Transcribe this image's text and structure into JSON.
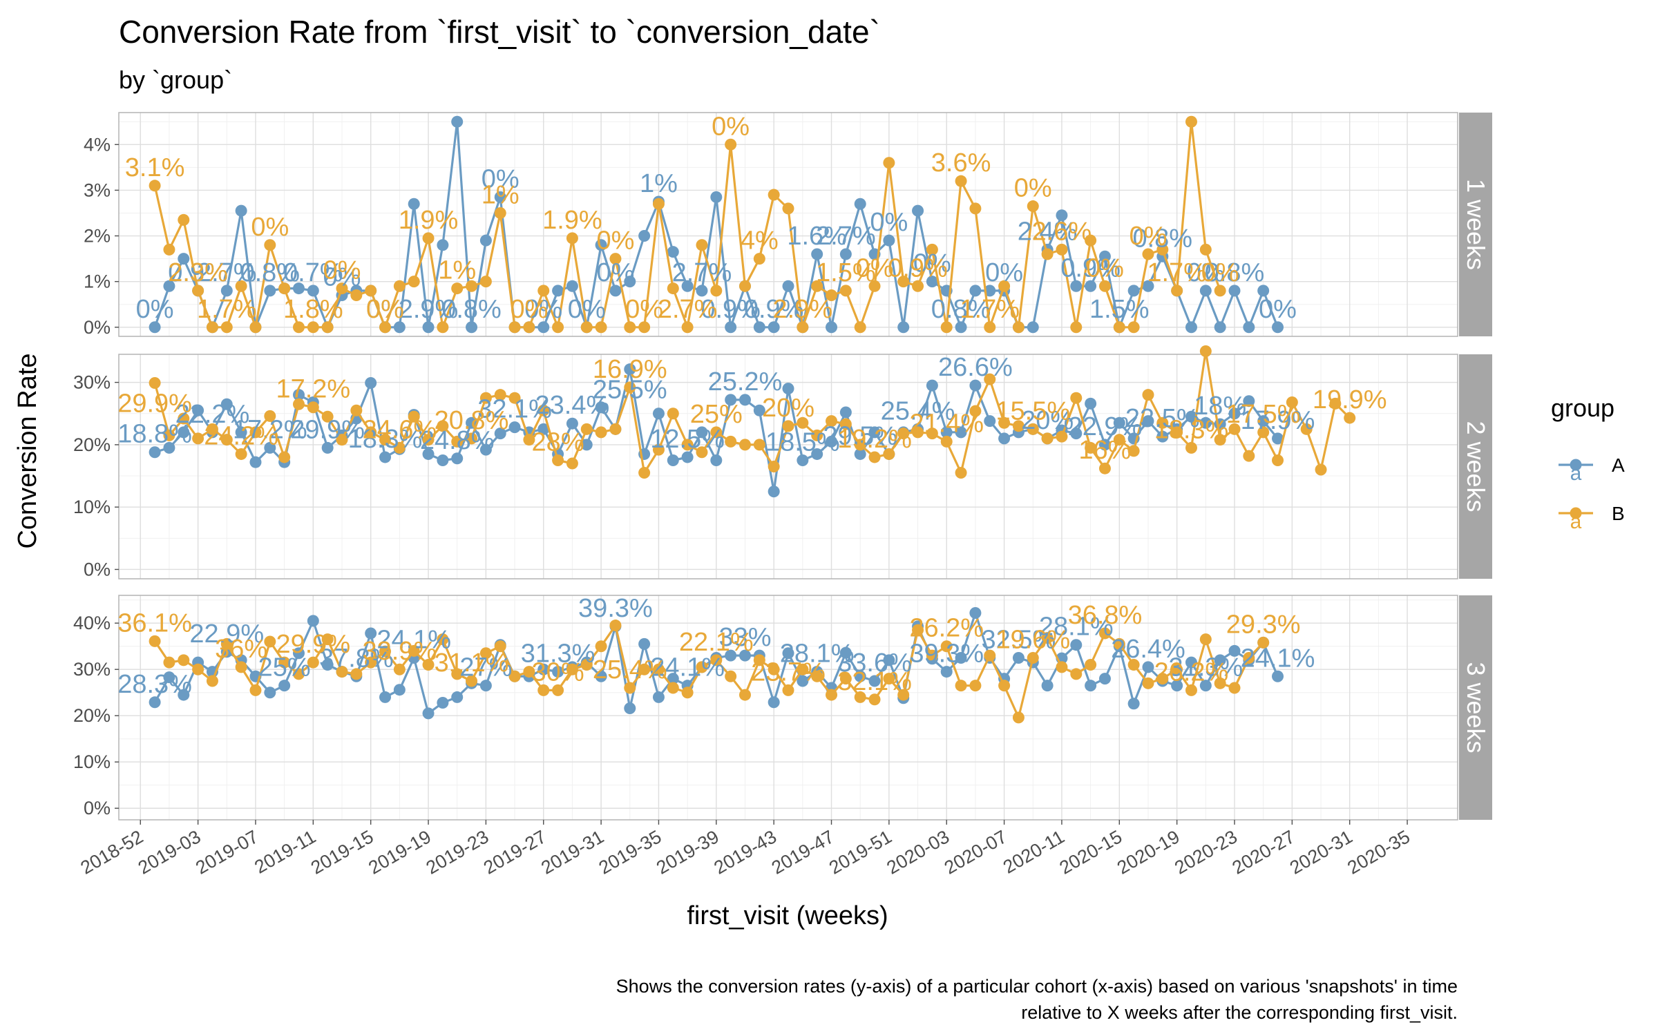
{
  "chart_data": {
    "type": "line",
    "title": "Conversion Rate from `first_visit` to `conversion_date`",
    "subtitle": "by `group`",
    "xlabel": "first_visit (weeks)",
    "ylabel": "Conversion Rate",
    "caption_lines": [
      "Shows the conversion rates (y-axis) of a particular cohort (x-axis) based on various 'snapshots' in time",
      "relative to X weeks after the corresponding first_visit."
    ],
    "legend": {
      "title": "group",
      "placement": "right",
      "entries": [
        {
          "name": "A",
          "color": "#6a9bc3"
        },
        {
          "name": "B",
          "color": "#e8a838"
        }
      ],
      "key_glyph": "a"
    },
    "x_axis": {
      "tick_labels": [
        "2018-52",
        "2019-03",
        "2019-07",
        "2019-11",
        "2019-15",
        "2019-19",
        "2019-23",
        "2019-27",
        "2019-31",
        "2019-35",
        "2019-39",
        "2019-43",
        "2019-47",
        "2019-51",
        "2020-03",
        "2020-07",
        "2020-11",
        "2020-15",
        "2020-19",
        "2020-23",
        "2020-27",
        "2020-31",
        "2020-35"
      ],
      "tick_step_weeks": 4,
      "range_weeks": [
        -1.5,
        91.5
      ]
    },
    "grid": true,
    "facets": [
      {
        "label": "1 weeks",
        "yticks": [
          0,
          1,
          2,
          3,
          4
        ],
        "ytick_labels": [
          "0%",
          "1%",
          "2%",
          "3%",
          "4%"
        ],
        "ylim": [
          -0.2,
          4.7
        ],
        "series": [
          {
            "name": "A",
            "start_week": 1,
            "values": [
              0,
              0.9,
              1.5,
              0.8,
              0,
              0.8,
              2.55,
              0,
              0.8,
              0.85,
              0.85,
              0.8,
              0,
              0.7,
              0.8,
              0.8,
              0,
              0,
              2.7,
              0,
              1.8,
              4.5,
              0,
              1.9,
              2.85,
              0,
              0,
              0,
              0.8,
              0.9,
              0,
              1.8,
              0.8,
              1.0,
              2.0,
              2.75,
              1.65,
              0.9,
              0.8,
              2.85,
              0,
              0.9,
              0,
              0,
              0.9,
              0,
              1.6,
              0,
              1.6,
              2.7,
              1.6,
              1.9,
              0,
              2.55,
              1.0,
              0.8,
              0,
              0.8,
              0.8,
              0.8,
              0,
              0,
              1.7,
              2.45,
              0.9,
              0.9,
              1.55,
              0,
              0.8,
              0.9,
              1.55,
              0.8,
              0,
              0.8,
              0,
              0.8,
              0,
              0.8,
              0,
              null
            ]
          },
          {
            "name": "B",
            "start_week": 1,
            "values": [
              3.1,
              1.7,
              2.35,
              0.8,
              0,
              0,
              0.9,
              0,
              1.8,
              0.85,
              0,
              0,
              0,
              0.85,
              0.7,
              0.8,
              0,
              0.9,
              1.0,
              1.95,
              0,
              0.85,
              0.9,
              1.0,
              2.5,
              0,
              0,
              0.8,
              0,
              1.95,
              0,
              0,
              1.5,
              0,
              0,
              2.7,
              0.85,
              0,
              1.8,
              0.8,
              4.0,
              0.9,
              1.5,
              2.9,
              2.6,
              0,
              0.9,
              0.7,
              0.8,
              0,
              0.9,
              3.6,
              1.0,
              0.9,
              1.7,
              0,
              3.2,
              2.6,
              0,
              0.9,
              0,
              2.65,
              1.6,
              1.7,
              0,
              1.9,
              0.9,
              0,
              0,
              1.6,
              1.7,
              0.8,
              4.5,
              1.7,
              0.8,
              null,
              null,
              null,
              null,
              null
            ]
          }
        ],
        "data_labels": {
          "A": [
            "0%",
            "0.9%",
            "2.7%",
            "0.8%",
            "0.7%",
            "0%",
            "0%",
            "2.9%",
            "0.8%",
            "0%",
            "0%",
            "0%",
            "0%",
            "1%",
            "2.7%",
            "0.9%",
            "0.9%",
            "1.6%",
            "2.7%",
            "0%",
            "0%",
            "0.8%",
            "0%",
            "2.4%",
            "0.9%",
            "1.5%",
            "0.8%",
            "0%",
            "0.8%",
            "0%"
          ],
          "B": [
            "3.1%",
            "2.3%",
            "1.7%",
            "0%",
            "1.8%",
            "0%",
            "0%",
            "1.9%",
            "1%",
            "1%",
            "0%",
            "1.9%",
            "0%",
            "0%",
            "2.7%",
            "0%",
            "4%",
            "2.9%",
            "1.5%",
            "0%",
            "0.9%",
            "3.6%",
            "1.7%",
            "0%",
            "2.6%",
            "0%",
            "0%",
            "1.7%",
            "0%"
          ]
        }
      },
      {
        "label": "2 weeks",
        "yticks": [
          0,
          10,
          20,
          30
        ],
        "ytick_labels": [
          "0%",
          "10%",
          "20%",
          "30%"
        ],
        "ylim": [
          -1.5,
          34.5
        ],
        "series": [
          {
            "name": "A",
            "start_week": 1,
            "values": [
              18.8,
              19.5,
              22,
              25.5,
              22,
              26.5,
              22,
              17.2,
              19.5,
              17.2,
              28,
              26.8,
              19.5,
              21.5,
              24.2,
              29.9,
              18,
              19.3,
              24.8,
              18.5,
              17.5,
              17.8,
              23.5,
              19.2,
              21.8,
              22.8,
              22,
              22.5,
              18.5,
              23.4,
              20,
              26,
              22.5,
              32.1,
              18.5,
              25,
              17.5,
              18,
              22,
              17.5,
              27.2,
              27.2,
              25.5,
              12.5,
              29,
              17.5,
              18.5,
              20.5,
              25.2,
              18.5,
              22,
              18.5,
              22,
              22.5,
              29.5,
              22,
              22,
              29.5,
              23.8,
              21,
              22,
              22.5,
              21,
              22.3,
              21.8,
              26.6,
              20,
              23.5,
              21,
              23.8,
              21.3,
              22.5,
              24.5,
              23.5,
              23.3,
              25,
              27,
              23.8,
              21,
              null
            ]
          },
          {
            "name": "B",
            "start_week": 1,
            "values": [
              29.9,
              21.5,
              24.2,
              21,
              22.5,
              20.8,
              18.5,
              22,
              24.6,
              18,
              26.5,
              26,
              24.5,
              20.8,
              25.5,
              22,
              20.8,
              19.5,
              24.5,
              20.8,
              23,
              20.5,
              21,
              27.5,
              28,
              27.5,
              20.8,
              25.5,
              17.5,
              17,
              22.5,
              22,
              22.5,
              29.2,
              15.5,
              19.2,
              25,
              20,
              18.8,
              22,
              20.5,
              20,
              20,
              16.5,
              23,
              23.5,
              21.5,
              23.8,
              23.3,
              20,
              18,
              18.5,
              21.8,
              22,
              21.8,
              20.5,
              15.5,
              25.4,
              30.5,
              23.5,
              23,
              22.5,
              21,
              21.3,
              27.5,
              19.5,
              16.2,
              20.8,
              19,
              28,
              23.5,
              22,
              19.5,
              35,
              20.8,
              22.5,
              18.2,
              22,
              17.5,
              26.8,
              22.5,
              16,
              26.6,
              24.3,
              null
            ]
          }
        ],
        "data_labels": {
          "A": [
            "18.8%",
            "22.2%",
            "17.2%",
            "29.9%",
            "18.3%",
            "24.8%",
            "32.1%",
            "23.4%",
            "25.5%",
            "12.5%",
            "25.2%",
            "18.5%",
            "29.5%",
            "25.4%",
            "26.6%",
            "20%",
            "22.9%",
            "23.5%",
            "18%",
            "17.9%"
          ],
          "B": [
            "29.9%",
            "24.2%",
            "17.2%",
            "24.6%",
            "20.8%",
            "28%",
            "16.9%",
            "25%",
            "20%",
            "19.2%",
            "21.4%",
            "15.5%",
            "16%",
            "18.3%",
            "17.5%",
            "19.9%"
          ]
        }
      },
      {
        "label": "3 weeks",
        "yticks": [
          0,
          10,
          20,
          30,
          40
        ],
        "ytick_labels": [
          "0%",
          "10%",
          "20%",
          "30%",
          "40%"
        ],
        "ylim": [
          -2.5,
          46
        ],
        "series": [
          {
            "name": "A",
            "start_week": 1,
            "values": [
              22.9,
              28.3,
              24.5,
              31.5,
              29.5,
              33.8,
              32,
              28.5,
              25,
              26.5,
              33.5,
              40.5,
              31,
              29.5,
              28.5,
              37.8,
              24,
              25.6,
              32.5,
              20.5,
              22.8,
              24,
              27,
              26.5,
              35.3,
              28.5,
              28.5,
              30,
              29.5,
              30.5,
              31.5,
              28.5,
              39.3,
              21.6,
              35.5,
              24,
              28,
              26.5,
              30.5,
              32.5,
              33,
              33,
              33,
              22.9,
              33.5,
              27.5,
              29.5,
              26,
              33.6,
              28.5,
              27.5,
              32,
              23.8,
              39.3,
              32.3,
              29.5,
              32.5,
              42.2,
              32.5,
              28,
              32.5,
              31.5,
              26.5,
              32.4,
              35.3,
              26.5,
              28,
              35,
              22.6,
              30.5,
              27.5,
              26.5,
              31.5,
              26.5,
              32,
              34,
              32,
              35.8,
              28.5,
              null
            ]
          },
          {
            "name": "B",
            "start_week": 1,
            "values": [
              36.1,
              31.5,
              32,
              30,
              27.5,
              35.5,
              30.5,
              25.5,
              36,
              31.5,
              29,
              31.5,
              36.5,
              29.5,
              29,
              31.5,
              33.9,
              30,
              34,
              31,
              36.5,
              29,
              27.5,
              33.5,
              35,
              28.5,
              29.5,
              25.5,
              25.5,
              30,
              31,
              35,
              39.5,
              26,
              30,
              30,
              26,
              25,
              30.5,
              32,
              28.5,
              24.5,
              32,
              30,
              25.5,
              30,
              28.5,
              24.5,
              28,
              24,
              23.5,
              28,
              24.5,
              38.5,
              33,
              35,
              26.5,
              26.5,
              33,
              26.5,
              19.6,
              32.5,
              36.8,
              30.5,
              29,
              31,
              37.8,
              35.5,
              31,
              27,
              28,
              30,
              25.5,
              36.5,
              27,
              26,
              32.5,
              35.8,
              null,
              null
            ]
          }
        ],
        "data_labels": {
          "A": [
            "28.3%",
            "22.9%",
            "25%",
            "37.8%",
            "24.1%",
            "27%",
            "31.3%",
            "39.3%",
            "24.1%",
            "33%",
            "28.1%",
            "33.6%",
            "39.3%",
            "32.5%",
            "28.1%",
            "26.4%",
            "31.3%",
            "24.1%"
          ],
          "B": [
            "36.1%",
            "36%",
            "29.9%",
            "33.9%",
            "31.1%",
            "30%",
            "25.4%",
            "22.1%",
            "23.7%",
            "32.1%",
            "26.2%",
            "19.6%",
            "36.8%",
            "26.2%",
            "29.3%"
          ]
        }
      }
    ]
  }
}
